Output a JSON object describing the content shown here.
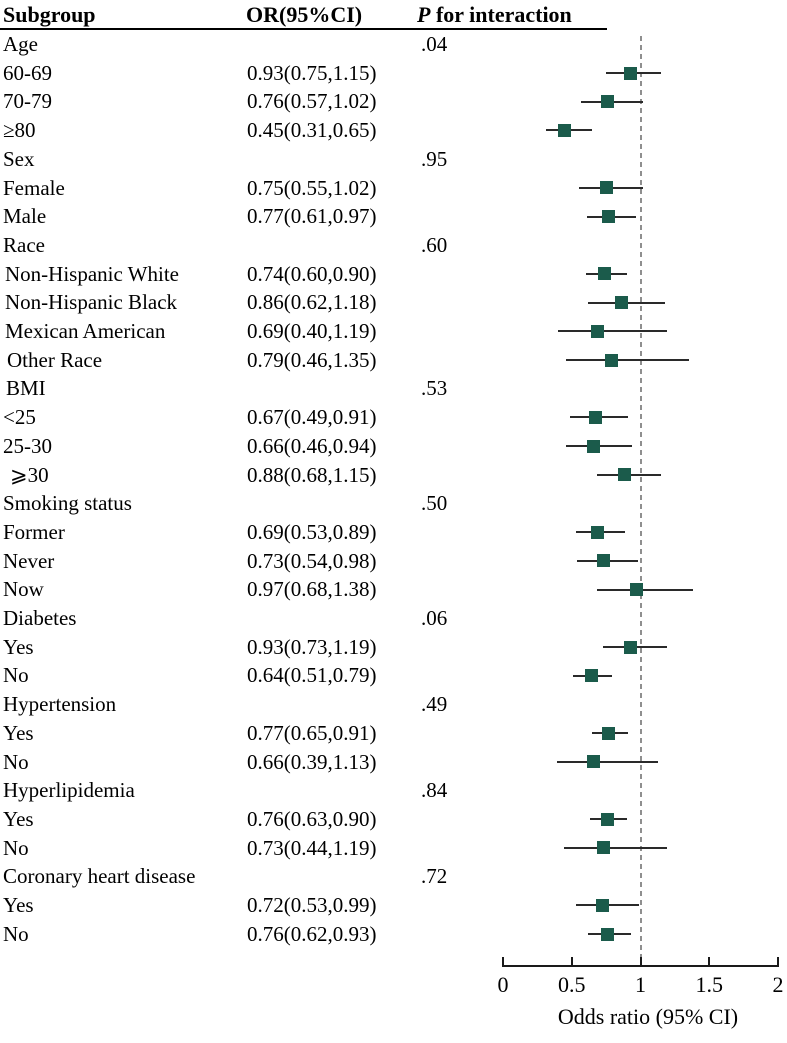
{
  "header": {
    "subgroup": "Subgroup",
    "or_ci": "OR(95%CI)",
    "p_italic": "P",
    "p_rest": " for interaction"
  },
  "chart_data": {
    "type": "forest",
    "xlabel": "Odds ratio (95% CI)",
    "xlim": [
      0,
      2
    ],
    "ticks": [
      0,
      0.5,
      1,
      1.5,
      2
    ],
    "tick_labels": [
      "0",
      "0.5",
      "1",
      "1.5",
      "2"
    ],
    "reference_line": 1,
    "legend_position": "none",
    "grid": false,
    "rows": [
      {
        "label": "Age",
        "or_text": "",
        "p": ".04",
        "or": null,
        "lo": null,
        "hi": null,
        "indent": 0
      },
      {
        "label": "60-69",
        "or_text": "0.93(0.75,1.15)",
        "p": "",
        "or": 0.93,
        "lo": 0.75,
        "hi": 1.15,
        "indent": 0
      },
      {
        "label": "70-79",
        "or_text": "0.76(0.57,1.02)",
        "p": "",
        "or": 0.76,
        "lo": 0.57,
        "hi": 1.02,
        "indent": 0
      },
      {
        "label": "≥80",
        "or_text": "0.45(0.31,0.65)",
        "p": "",
        "or": 0.45,
        "lo": 0.31,
        "hi": 0.65,
        "indent": 0
      },
      {
        "label": "Sex",
        "or_text": "",
        "p": ".95",
        "or": null,
        "lo": null,
        "hi": null,
        "indent": 0
      },
      {
        "label": "Female",
        "or_text": "0.75(0.55,1.02)",
        "p": "",
        "or": 0.75,
        "lo": 0.55,
        "hi": 1.02,
        "indent": 0
      },
      {
        "label": "Male",
        "or_text": "0.77(0.61,0.97)",
        "p": "",
        "or": 0.77,
        "lo": 0.61,
        "hi": 0.97,
        "indent": 0
      },
      {
        "label": "Race",
        "or_text": "",
        "p": ".60",
        "or": null,
        "lo": null,
        "hi": null,
        "indent": 0
      },
      {
        "label": "Non-Hispanic White",
        "or_text": "0.74(0.60,0.90)",
        "p": "",
        "or": 0.74,
        "lo": 0.6,
        "hi": 0.9,
        "indent": 2
      },
      {
        "label": "Non-Hispanic Black",
        "or_text": "0.86(0.62,1.18)",
        "p": "",
        "or": 0.86,
        "lo": 0.62,
        "hi": 1.18,
        "indent": 2
      },
      {
        "label": "Mexican American",
        "or_text": "0.69(0.40,1.19)",
        "p": "",
        "or": 0.69,
        "lo": 0.4,
        "hi": 1.19,
        "indent": 2
      },
      {
        "label": "Other Race",
        "or_text": "0.79(0.46,1.35)",
        "p": "",
        "or": 0.79,
        "lo": 0.46,
        "hi": 1.35,
        "indent": 4
      },
      {
        "label": "BMI",
        "or_text": "",
        "p": ".53",
        "or": null,
        "lo": null,
        "hi": null,
        "indent": 3
      },
      {
        "label": "<25",
        "or_text": "0.67(0.49,0.91)",
        "p": "",
        "or": 0.67,
        "lo": 0.49,
        "hi": 0.91,
        "indent": 0
      },
      {
        "label": "25-30",
        "or_text": "0.66(0.46,0.94)",
        "p": "",
        "or": 0.66,
        "lo": 0.46,
        "hi": 0.94,
        "indent": 0
      },
      {
        "label": "⩾30",
        "or_text": "0.88(0.68,1.15)",
        "p": "",
        "or": 0.88,
        "lo": 0.68,
        "hi": 1.15,
        "indent": 7
      },
      {
        "label": "Smoking status",
        "or_text": "",
        "p": ".50",
        "or": null,
        "lo": null,
        "hi": null,
        "indent": 0
      },
      {
        "label": "Former",
        "or_text": "0.69(0.53,0.89)",
        "p": "",
        "or": 0.69,
        "lo": 0.53,
        "hi": 0.89,
        "indent": 0
      },
      {
        "label": "Never",
        "or_text": "0.73(0.54,0.98)",
        "p": "",
        "or": 0.73,
        "lo": 0.54,
        "hi": 0.98,
        "indent": 0
      },
      {
        "label": "Now",
        "or_text": "0.97(0.68,1.38)",
        "p": "",
        "or": 0.97,
        "lo": 0.68,
        "hi": 1.38,
        "indent": 0
      },
      {
        "label": "Diabetes",
        "or_text": "",
        "p": ".06",
        "or": null,
        "lo": null,
        "hi": null,
        "indent": 0
      },
      {
        "label": "Yes",
        "or_text": "0.93(0.73,1.19)",
        "p": "",
        "or": 0.93,
        "lo": 0.73,
        "hi": 1.19,
        "indent": 0
      },
      {
        "label": "No",
        "or_text": "0.64(0.51,0.79)",
        "p": "",
        "or": 0.64,
        "lo": 0.51,
        "hi": 0.79,
        "indent": 0
      },
      {
        "label": "Hypertension",
        "or_text": "",
        "p": ".49",
        "or": null,
        "lo": null,
        "hi": null,
        "indent": 0
      },
      {
        "label": "Yes",
        "or_text": "0.77(0.65,0.91)",
        "p": "",
        "or": 0.77,
        "lo": 0.65,
        "hi": 0.91,
        "indent": 0
      },
      {
        "label": "No",
        "or_text": "0.66(0.39,1.13)",
        "p": "",
        "or": 0.66,
        "lo": 0.39,
        "hi": 1.13,
        "indent": 0
      },
      {
        "label": "Hyperlipidemia",
        "or_text": "",
        "p": ".84",
        "or": null,
        "lo": null,
        "hi": null,
        "indent": 0
      },
      {
        "label": "Yes",
        "or_text": "0.76(0.63,0.90)",
        "p": "",
        "or": 0.76,
        "lo": 0.63,
        "hi": 0.9,
        "indent": 0
      },
      {
        "label": "No",
        "or_text": "0.73(0.44,1.19)",
        "p": "",
        "or": 0.73,
        "lo": 0.44,
        "hi": 1.19,
        "indent": 0
      },
      {
        "label": "Coronary heart disease",
        "or_text": "",
        "p": ".72",
        "or": null,
        "lo": null,
        "hi": null,
        "indent": 0
      },
      {
        "label": "Yes",
        "or_text": "0.72(0.53,0.99)",
        "p": "",
        "or": 0.72,
        "lo": 0.53,
        "hi": 0.99,
        "indent": 0
      },
      {
        "label": "No",
        "or_text": "0.76(0.62,0.93)",
        "p": "",
        "or": 0.76,
        "lo": 0.62,
        "hi": 0.93,
        "indent": 0
      }
    ]
  },
  "colors": {
    "marker": "#1b5b4b",
    "ci_line": "#2a2a2a",
    "reference_line": "#8f8f8f",
    "axis": "#1a1a1a",
    "text": "#000000"
  }
}
